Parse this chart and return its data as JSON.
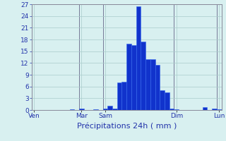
{
  "title": "",
  "xlabel": "Précipitations 24h ( mm )",
  "ylabel": "",
  "background_color": "#d8f0f0",
  "bar_color": "#1133cc",
  "bar_edge_color": "#3366ee",
  "ylim": [
    0,
    27
  ],
  "yticks": [
    0,
    3,
    6,
    9,
    12,
    15,
    18,
    21,
    24,
    27
  ],
  "grid_color": "#aacccc",
  "num_bars": 40,
  "bar_values": [
    0,
    0,
    0,
    0,
    0,
    0,
    0,
    0,
    0.2,
    0,
    0.3,
    0,
    0,
    0.2,
    0,
    0.4,
    1.0,
    0.3,
    7,
    7.2,
    17,
    16.5,
    26.5,
    17.5,
    13,
    13,
    11.5,
    5,
    4.5,
    0.4,
    0.2,
    0,
    0,
    0,
    0,
    0,
    0.7,
    0,
    0.3,
    0.2
  ],
  "xtick_labels": [
    "Ven",
    "Mar",
    "Sam",
    "Dim",
    "Lun"
  ],
  "xtick_positions": [
    0,
    10,
    15,
    30,
    39
  ],
  "vline_color": "#666688",
  "xlabel_fontsize": 8,
  "xlabel_color": "#2233aa",
  "tick_color": "#2233aa",
  "tick_fontsize": 6.5,
  "spine_color": "#888899"
}
